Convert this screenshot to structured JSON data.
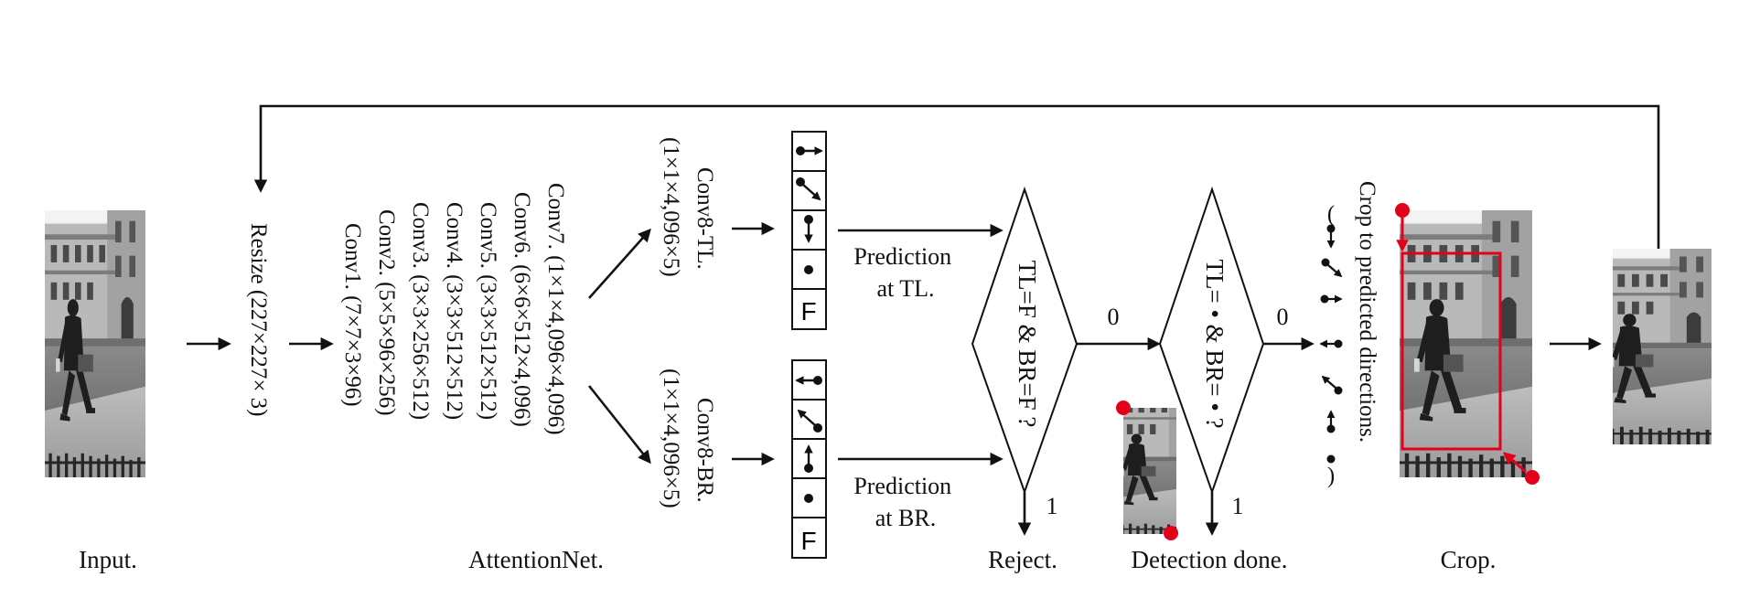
{
  "captions": {
    "input": "Input.",
    "network": "AttentionNet.",
    "reject": "Reject.",
    "done": "Detection done.",
    "crop": "Crop."
  },
  "resize": "Resize (227×227× 3)",
  "layers": [
    "Conv7. (1×1×4,096×4,096)",
    "Conv6. (6×6×512×4,096)",
    "Conv5. (3×3×512×512)",
    "Conv4. (3×3×512×512)",
    "Conv3. (3×3×256×512)",
    "Conv2. (5×5×96×256)",
    "Conv1. (7×7×3×96)"
  ],
  "heads": {
    "tl": {
      "name": "Conv8-TL.",
      "dims": "(1×1×4,096×5)"
    },
    "br": {
      "name": "Conv8-BR.",
      "dims": "(1×1×4,096×5)"
    }
  },
  "tl_outputs": [
    "right-arrow-icon",
    "down-right-arrow-icon",
    "down-arrow-icon",
    "dot-icon",
    "F"
  ],
  "br_outputs": [
    "left-arrow-icon",
    "up-left-arrow-icon",
    "up-arrow-icon",
    "dot-icon",
    "F"
  ],
  "predictions": {
    "tl": [
      "Prediction",
      "at TL."
    ],
    "br": [
      "Prediction",
      "at BR."
    ]
  },
  "decisions": {
    "reject": "TL=F & BR=F ?",
    "done": "TL= • & BR= • ?",
    "zero": "0",
    "one": "1"
  },
  "crop_text": {
    "title": "Crop to predicted directions.",
    "open": "(",
    "close": ")"
  },
  "colors": {
    "stroke": "#111111",
    "corner_marker": "#e3001b"
  }
}
